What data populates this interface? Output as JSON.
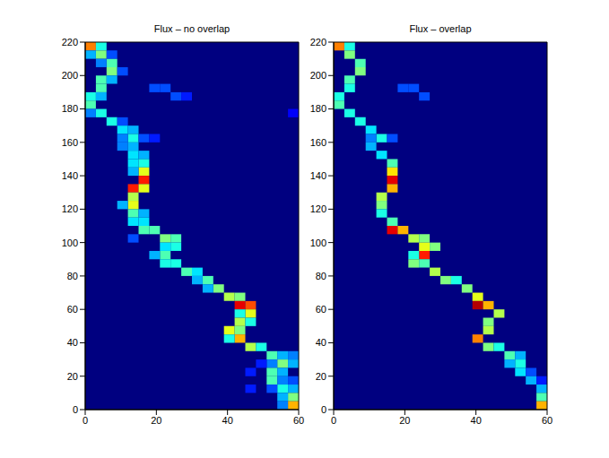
{
  "chart_data": [
    {
      "type": "heatmap",
      "title": "Flux – no overlap",
      "xlim": [
        0,
        60
      ],
      "ylim": [
        0,
        220
      ],
      "xticks": [
        0,
        20,
        40,
        60
      ],
      "yticks": [
        0,
        20,
        40,
        60,
        80,
        100,
        120,
        140,
        160,
        180,
        200,
        220
      ],
      "xbins": [
        0,
        3,
        6,
        9,
        12,
        15,
        18,
        21,
        24,
        27,
        30,
        33,
        36,
        39,
        42,
        45,
        48,
        51,
        54,
        57,
        60
      ],
      "ybins": [
        0,
        5,
        10,
        15,
        20,
        25,
        30,
        35,
        40,
        45,
        50,
        55,
        60,
        65,
        70,
        75,
        80,
        85,
        90,
        95,
        100,
        105,
        110,
        115,
        120,
        125,
        130,
        135,
        140,
        145,
        150,
        155,
        160,
        165,
        170,
        175,
        180,
        185,
        190,
        195,
        200,
        205,
        210,
        215,
        220
      ],
      "clim": [
        0,
        1
      ],
      "cells": [
        [
          0,
          215,
          0.75
        ],
        [
          3,
          215,
          0.4
        ],
        [
          3,
          210,
          0.5
        ],
        [
          0,
          210,
          0.3
        ],
        [
          6,
          210,
          0.2
        ],
        [
          6,
          205,
          0.45
        ],
        [
          3,
          205,
          0.25
        ],
        [
          6,
          200,
          0.5
        ],
        [
          9,
          200,
          0.2
        ],
        [
          3,
          195,
          0.45
        ],
        [
          6,
          195,
          0.3
        ],
        [
          3,
          190,
          0.45
        ],
        [
          0,
          185,
          0.4
        ],
        [
          3,
          185,
          0.3
        ],
        [
          0,
          180,
          0.45
        ],
        [
          3,
          175,
          0.4
        ],
        [
          0,
          175,
          0.25
        ],
        [
          6,
          170,
          0.4
        ],
        [
          9,
          170,
          0.2
        ],
        [
          9,
          165,
          0.35
        ],
        [
          12,
          165,
          0.3
        ],
        [
          12,
          160,
          0.4
        ],
        [
          9,
          160,
          0.25
        ],
        [
          15,
          160,
          0.2
        ],
        [
          18,
          160,
          0.15
        ],
        [
          9,
          155,
          0.25
        ],
        [
          12,
          155,
          0.3
        ],
        [
          12,
          150,
          0.35
        ],
        [
          15,
          150,
          0.3
        ],
        [
          12,
          145,
          0.35
        ],
        [
          15,
          145,
          0.4
        ],
        [
          15,
          140,
          0.6
        ],
        [
          12,
          140,
          0.3
        ],
        [
          15,
          135,
          0.85
        ],
        [
          12,
          130,
          0.85
        ],
        [
          15,
          130,
          0.6
        ],
        [
          12,
          125,
          0.55
        ],
        [
          12,
          120,
          0.6
        ],
        [
          9,
          120,
          0.3
        ],
        [
          12,
          115,
          0.45
        ],
        [
          15,
          115,
          0.3
        ],
        [
          12,
          110,
          0.35
        ],
        [
          15,
          110,
          0.35
        ],
        [
          15,
          105,
          0.45
        ],
        [
          18,
          105,
          0.45
        ],
        [
          21,
          100,
          0.5
        ],
        [
          24,
          100,
          0.45
        ],
        [
          12,
          100,
          0.2
        ],
        [
          24,
          95,
          0.4
        ],
        [
          21,
          95,
          0.35
        ],
        [
          21,
          90,
          0.45
        ],
        [
          18,
          90,
          0.3
        ],
        [
          21,
          85,
          0.4
        ],
        [
          24,
          85,
          0.4
        ],
        [
          27,
          80,
          0.45
        ],
        [
          30,
          80,
          0.35
        ],
        [
          33,
          75,
          0.45
        ],
        [
          30,
          75,
          0.3
        ],
        [
          36,
          70,
          0.5
        ],
        [
          33,
          70,
          0.3
        ],
        [
          39,
          65,
          0.55
        ],
        [
          42,
          65,
          0.5
        ],
        [
          42,
          60,
          0.9
        ],
        [
          45,
          60,
          0.8
        ],
        [
          45,
          55,
          0.6
        ],
        [
          42,
          55,
          0.4
        ],
        [
          42,
          50,
          0.55
        ],
        [
          45,
          50,
          0.4
        ],
        [
          39,
          45,
          0.6
        ],
        [
          42,
          45,
          0.5
        ],
        [
          42,
          40,
          0.7
        ],
        [
          39,
          40,
          0.4
        ],
        [
          45,
          35,
          0.55
        ],
        [
          48,
          35,
          0.4
        ],
        [
          51,
          30,
          0.45
        ],
        [
          54,
          30,
          0.3
        ],
        [
          57,
          30,
          0.25
        ],
        [
          54,
          25,
          0.5
        ],
        [
          57,
          25,
          0.3
        ],
        [
          51,
          25,
          0.25
        ],
        [
          48,
          25,
          0.15
        ],
        [
          51,
          20,
          0.45
        ],
        [
          54,
          20,
          0.3
        ],
        [
          45,
          20,
          0.15
        ],
        [
          51,
          15,
          0.45
        ],
        [
          54,
          15,
          0.25
        ],
        [
          57,
          15,
          0.2
        ],
        [
          54,
          10,
          0.4
        ],
        [
          57,
          10,
          0.3
        ],
        [
          51,
          10,
          0.2
        ],
        [
          45,
          10,
          0.15
        ],
        [
          57,
          5,
          0.5
        ],
        [
          54,
          5,
          0.3
        ],
        [
          57,
          0,
          0.7
        ],
        [
          54,
          0,
          0.25
        ],
        [
          18,
          190,
          0.2
        ],
        [
          21,
          190,
          0.2
        ],
        [
          24,
          185,
          0.2
        ],
        [
          27,
          185,
          0.15
        ],
        [
          57,
          175,
          0.12
        ]
      ]
    },
    {
      "type": "heatmap",
      "title": "Flux – overlap",
      "xlim": [
        0,
        60
      ],
      "ylim": [
        0,
        220
      ],
      "xticks": [
        0,
        20,
        40,
        60
      ],
      "yticks": [
        0,
        20,
        40,
        60,
        80,
        100,
        120,
        140,
        160,
        180,
        200,
        220
      ],
      "xbins": [
        0,
        3,
        6,
        9,
        12,
        15,
        18,
        21,
        24,
        27,
        30,
        33,
        36,
        39,
        42,
        45,
        48,
        51,
        54,
        57,
        60
      ],
      "ybins": [
        0,
        5,
        10,
        15,
        20,
        25,
        30,
        35,
        40,
        45,
        50,
        55,
        60,
        65,
        70,
        75,
        80,
        85,
        90,
        95,
        100,
        105,
        110,
        115,
        120,
        125,
        130,
        135,
        140,
        145,
        150,
        155,
        160,
        165,
        170,
        175,
        180,
        185,
        190,
        195,
        200,
        205,
        210,
        215,
        220
      ],
      "clim": [
        0,
        1
      ],
      "cells": [
        [
          0,
          215,
          0.75
        ],
        [
          3,
          215,
          0.4
        ],
        [
          3,
          210,
          0.5
        ],
        [
          6,
          205,
          0.45
        ],
        [
          6,
          200,
          0.5
        ],
        [
          3,
          195,
          0.45
        ],
        [
          3,
          190,
          0.4
        ],
        [
          0,
          185,
          0.4
        ],
        [
          0,
          180,
          0.45
        ],
        [
          3,
          175,
          0.4
        ],
        [
          6,
          170,
          0.4
        ],
        [
          9,
          165,
          0.35
        ],
        [
          12,
          160,
          0.4
        ],
        [
          9,
          160,
          0.25
        ],
        [
          15,
          160,
          0.2
        ],
        [
          9,
          155,
          0.3
        ],
        [
          12,
          150,
          0.35
        ],
        [
          15,
          145,
          0.45
        ],
        [
          15,
          140,
          0.65
        ],
        [
          15,
          135,
          0.9
        ],
        [
          15,
          130,
          0.7
        ],
        [
          12,
          125,
          0.55
        ],
        [
          12,
          120,
          0.5
        ],
        [
          12,
          115,
          0.4
        ],
        [
          15,
          110,
          0.45
        ],
        [
          15,
          105,
          0.9
        ],
        [
          18,
          105,
          0.7
        ],
        [
          21,
          100,
          0.55
        ],
        [
          24,
          100,
          0.5
        ],
        [
          24,
          95,
          0.6
        ],
        [
          27,
          95,
          0.5
        ],
        [
          24,
          90,
          0.85
        ],
        [
          21,
          90,
          0.4
        ],
        [
          21,
          85,
          0.5
        ],
        [
          24,
          85,
          0.45
        ],
        [
          27,
          80,
          0.55
        ],
        [
          30,
          75,
          0.5
        ],
        [
          33,
          75,
          0.4
        ],
        [
          36,
          70,
          0.5
        ],
        [
          39,
          65,
          0.6
        ],
        [
          39,
          60,
          0.95
        ],
        [
          42,
          60,
          0.7
        ],
        [
          45,
          55,
          0.55
        ],
        [
          42,
          50,
          0.5
        ],
        [
          42,
          45,
          0.55
        ],
        [
          39,
          40,
          0.75
        ],
        [
          42,
          35,
          0.5
        ],
        [
          45,
          35,
          0.4
        ],
        [
          48,
          30,
          0.45
        ],
        [
          51,
          30,
          0.3
        ],
        [
          51,
          25,
          0.4
        ],
        [
          48,
          25,
          0.3
        ],
        [
          51,
          20,
          0.35
        ],
        [
          54,
          20,
          0.2
        ],
        [
          54,
          15,
          0.3
        ],
        [
          57,
          15,
          0.15
        ],
        [
          57,
          10,
          0.3
        ],
        [
          57,
          5,
          0.45
        ],
        [
          57,
          0,
          0.7
        ],
        [
          18,
          190,
          0.2
        ],
        [
          21,
          190,
          0.2
        ],
        [
          24,
          185,
          0.2
        ]
      ]
    }
  ]
}
